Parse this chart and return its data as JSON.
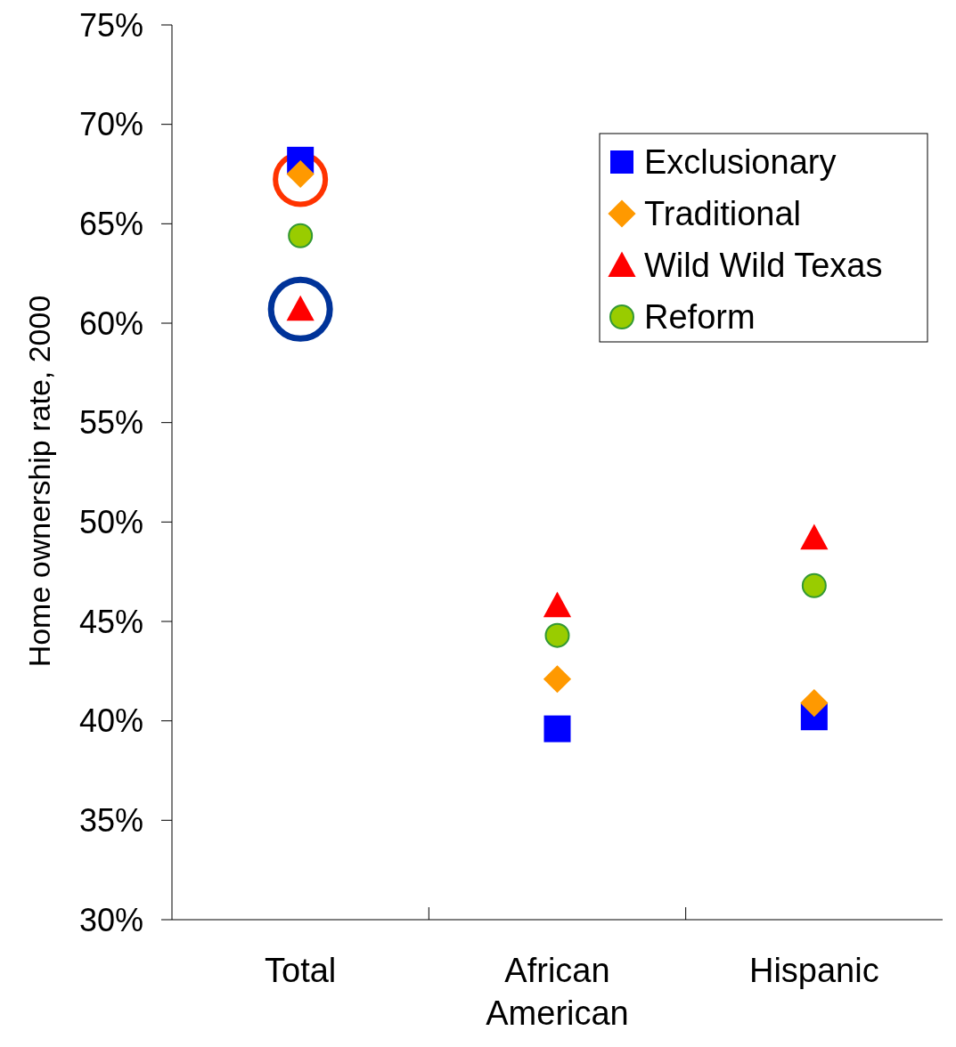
{
  "chart_data": {
    "type": "scatter",
    "ylabel": "Home ownership rate, 2000",
    "categories": [
      "Total",
      "African American",
      "Hispanic"
    ],
    "ylim": [
      30,
      75
    ],
    "yticks": [
      {
        "value": 30,
        "label": "30%"
      },
      {
        "value": 35,
        "label": "35%"
      },
      {
        "value": 40,
        "label": "40%"
      },
      {
        "value": 45,
        "label": "45%"
      },
      {
        "value": 50,
        "label": "50%"
      },
      {
        "value": 55,
        "label": "55%"
      },
      {
        "value": 60,
        "label": "60%"
      },
      {
        "value": 65,
        "label": "65%"
      },
      {
        "value": 70,
        "label": "70%"
      },
      {
        "value": 75,
        "label": "75%"
      }
    ],
    "grid": false,
    "legend": "top right",
    "series": [
      {
        "name": "Exclusionary",
        "color": "#0000ff",
        "marker": "square",
        "values": [
          68.2,
          39.6,
          40.2
        ]
      },
      {
        "name": "Traditional",
        "color": "#ff9900",
        "marker": "diamond",
        "values": [
          67.5,
          42.1,
          40.9
        ]
      },
      {
        "name": "Wild Wild Texas",
        "color": "#ff0000",
        "marker": "triangle",
        "values": [
          60.7,
          45.8,
          49.2
        ]
      },
      {
        "name": "Reform",
        "color": "#99cc00",
        "marker": "circle",
        "values": [
          64.4,
          44.3,
          46.8
        ]
      }
    ]
  }
}
